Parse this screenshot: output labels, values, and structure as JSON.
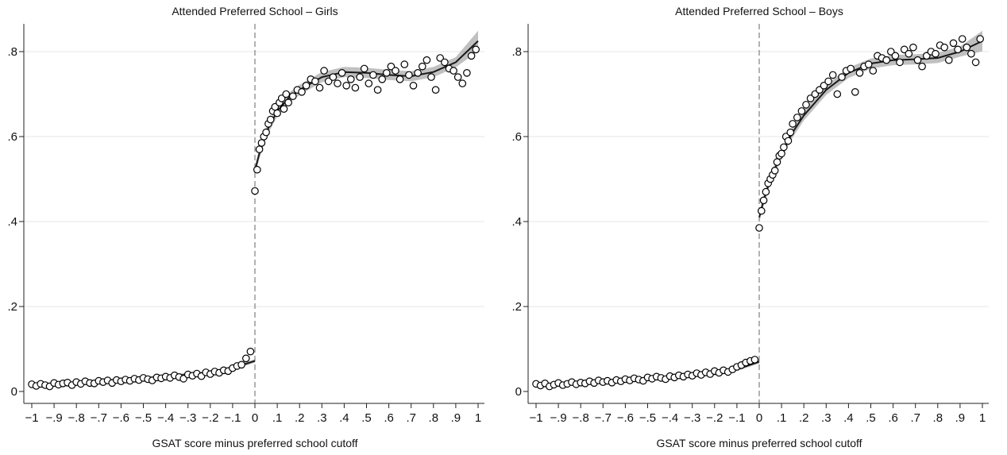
{
  "chart_data": [
    {
      "type": "scatter",
      "title": "Attended Preferred School – Girls",
      "xlabel": "GSAT score minus preferred school cutoff",
      "ylabel": "",
      "xlim": [
        -1,
        1
      ],
      "ylim": [
        0,
        0.85
      ],
      "x_ticks": [
        "−1",
        "−.9",
        "−.8",
        "−.7",
        "−.6",
        "−.5",
        "−.4",
        "−.3",
        "−.2",
        "−.1",
        "0",
        ".1",
        ".2",
        ".3",
        ".4",
        ".5",
        ".6",
        ".7",
        ".8",
        ".9",
        "1"
      ],
      "y_ticks": [
        "0",
        ".2",
        ".4",
        ".6",
        ".8"
      ],
      "grid": "horizontal",
      "cutoff_line": 0,
      "fit": {
        "left": {
          "x": [
            -1,
            -0.8,
            -0.6,
            -0.4,
            -0.2,
            -0.1,
            0
          ],
          "y": [
            0.015,
            0.02,
            0.027,
            0.035,
            0.045,
            0.055,
            0.072
          ]
        },
        "right": {
          "x": [
            0,
            0.02,
            0.05,
            0.1,
            0.15,
            0.2,
            0.3,
            0.4,
            0.5,
            0.6,
            0.7,
            0.8,
            0.9,
            1.0
          ],
          "y": [
            0.52,
            0.56,
            0.61,
            0.66,
            0.69,
            0.71,
            0.74,
            0.752,
            0.75,
            0.745,
            0.742,
            0.752,
            0.775,
            0.825
          ]
        }
      },
      "points": {
        "x": [
          -1.0,
          -0.98,
          -0.96,
          -0.94,
          -0.92,
          -0.9,
          -0.88,
          -0.86,
          -0.84,
          -0.82,
          -0.8,
          -0.78,
          -0.76,
          -0.74,
          -0.72,
          -0.7,
          -0.68,
          -0.66,
          -0.64,
          -0.62,
          -0.6,
          -0.58,
          -0.56,
          -0.54,
          -0.52,
          -0.5,
          -0.48,
          -0.46,
          -0.44,
          -0.42,
          -0.4,
          -0.38,
          -0.36,
          -0.34,
          -0.32,
          -0.3,
          -0.28,
          -0.26,
          -0.24,
          -0.22,
          -0.2,
          -0.18,
          -0.16,
          -0.14,
          -0.12,
          -0.1,
          -0.08,
          -0.06,
          -0.04,
          -0.02,
          0.0,
          0.01,
          0.02,
          0.03,
          0.04,
          0.05,
          0.06,
          0.07,
          0.08,
          0.09,
          0.1,
          0.11,
          0.12,
          0.13,
          0.14,
          0.15,
          0.17,
          0.19,
          0.21,
          0.23,
          0.25,
          0.27,
          0.29,
          0.31,
          0.33,
          0.35,
          0.37,
          0.39,
          0.41,
          0.43,
          0.45,
          0.47,
          0.49,
          0.51,
          0.53,
          0.55,
          0.57,
          0.59,
          0.61,
          0.63,
          0.65,
          0.67,
          0.69,
          0.71,
          0.73,
          0.75,
          0.77,
          0.79,
          0.81,
          0.83,
          0.85,
          0.87,
          0.89,
          0.91,
          0.93,
          0.95,
          0.97,
          0.99
        ],
        "y": [
          0.017,
          0.013,
          0.018,
          0.015,
          0.012,
          0.02,
          0.016,
          0.019,
          0.021,
          0.015,
          0.022,
          0.018,
          0.024,
          0.02,
          0.019,
          0.025,
          0.022,
          0.026,
          0.02,
          0.027,
          0.024,
          0.028,
          0.025,
          0.03,
          0.027,
          0.032,
          0.029,
          0.026,
          0.033,
          0.031,
          0.035,
          0.032,
          0.038,
          0.034,
          0.03,
          0.04,
          0.037,
          0.042,
          0.036,
          0.045,
          0.041,
          0.047,
          0.044,
          0.05,
          0.048,
          0.055,
          0.06,
          0.063,
          0.078,
          0.094,
          0.472,
          0.522,
          0.57,
          0.585,
          0.6,
          0.61,
          0.63,
          0.64,
          0.66,
          0.67,
          0.655,
          0.68,
          0.69,
          0.665,
          0.7,
          0.68,
          0.695,
          0.71,
          0.705,
          0.72,
          0.735,
          0.73,
          0.715,
          0.755,
          0.73,
          0.74,
          0.725,
          0.75,
          0.72,
          0.735,
          0.715,
          0.74,
          0.76,
          0.725,
          0.745,
          0.71,
          0.735,
          0.75,
          0.765,
          0.755,
          0.735,
          0.77,
          0.745,
          0.72,
          0.75,
          0.765,
          0.78,
          0.74,
          0.71,
          0.785,
          0.775,
          0.76,
          0.755,
          0.74,
          0.725,
          0.75,
          0.79,
          0.805
        ]
      }
    },
    {
      "type": "scatter",
      "title": "Attended Preferred School – Boys",
      "xlabel": "GSAT score minus preferred school cutoff",
      "ylabel": "",
      "xlim": [
        -1,
        1
      ],
      "ylim": [
        0,
        0.85
      ],
      "x_ticks": [
        "−1",
        "−.9",
        "−.8",
        "−.7",
        "−.6",
        "−.5",
        "−.4",
        "−.3",
        "−.2",
        "−.1",
        "0",
        ".1",
        ".2",
        ".3",
        ".4",
        ".5",
        ".6",
        ".7",
        ".8",
        ".9",
        "1"
      ],
      "y_ticks": [
        "0",
        ".2",
        ".4",
        ".6",
        ".8"
      ],
      "grid": "horizontal",
      "cutoff_line": 0,
      "fit": {
        "left": {
          "x": [
            -1,
            -0.8,
            -0.6,
            -0.4,
            -0.2,
            -0.1,
            0
          ],
          "y": [
            0.015,
            0.019,
            0.025,
            0.032,
            0.042,
            0.052,
            0.07
          ]
        },
        "right": {
          "x": [
            0,
            0.02,
            0.05,
            0.1,
            0.15,
            0.2,
            0.3,
            0.4,
            0.5,
            0.6,
            0.7,
            0.8,
            0.9,
            1.0
          ],
          "y": [
            0.41,
            0.45,
            0.5,
            0.56,
            0.61,
            0.65,
            0.71,
            0.75,
            0.772,
            0.78,
            0.782,
            0.785,
            0.8,
            0.825
          ]
        }
      },
      "points": {
        "x": [
          -1.0,
          -0.98,
          -0.96,
          -0.94,
          -0.92,
          -0.9,
          -0.88,
          -0.86,
          -0.84,
          -0.82,
          -0.8,
          -0.78,
          -0.76,
          -0.74,
          -0.72,
          -0.7,
          -0.68,
          -0.66,
          -0.64,
          -0.62,
          -0.6,
          -0.58,
          -0.56,
          -0.54,
          -0.52,
          -0.5,
          -0.48,
          -0.46,
          -0.44,
          -0.42,
          -0.4,
          -0.38,
          -0.36,
          -0.34,
          -0.32,
          -0.3,
          -0.28,
          -0.26,
          -0.24,
          -0.22,
          -0.2,
          -0.18,
          -0.16,
          -0.14,
          -0.12,
          -0.1,
          -0.08,
          -0.06,
          -0.04,
          -0.02,
          0.0,
          0.01,
          0.02,
          0.03,
          0.04,
          0.05,
          0.06,
          0.07,
          0.08,
          0.09,
          0.1,
          0.11,
          0.12,
          0.13,
          0.14,
          0.15,
          0.17,
          0.19,
          0.21,
          0.23,
          0.25,
          0.27,
          0.29,
          0.31,
          0.33,
          0.35,
          0.37,
          0.39,
          0.41,
          0.43,
          0.45,
          0.47,
          0.49,
          0.51,
          0.53,
          0.55,
          0.57,
          0.59,
          0.61,
          0.63,
          0.65,
          0.67,
          0.69,
          0.71,
          0.73,
          0.75,
          0.77,
          0.79,
          0.81,
          0.83,
          0.85,
          0.87,
          0.89,
          0.91,
          0.93,
          0.95,
          0.97,
          0.99
        ],
        "y": [
          0.018,
          0.014,
          0.019,
          0.012,
          0.016,
          0.02,
          0.015,
          0.018,
          0.022,
          0.017,
          0.021,
          0.019,
          0.024,
          0.02,
          0.026,
          0.022,
          0.025,
          0.021,
          0.027,
          0.024,
          0.029,
          0.026,
          0.031,
          0.028,
          0.025,
          0.033,
          0.03,
          0.035,
          0.032,
          0.029,
          0.036,
          0.033,
          0.038,
          0.035,
          0.04,
          0.037,
          0.043,
          0.039,
          0.045,
          0.041,
          0.048,
          0.044,
          0.05,
          0.046,
          0.052,
          0.058,
          0.062,
          0.068,
          0.072,
          0.075,
          0.385,
          0.425,
          0.45,
          0.47,
          0.49,
          0.5,
          0.51,
          0.52,
          0.54,
          0.555,
          0.56,
          0.575,
          0.6,
          0.59,
          0.61,
          0.63,
          0.645,
          0.66,
          0.675,
          0.69,
          0.7,
          0.71,
          0.72,
          0.73,
          0.745,
          0.7,
          0.74,
          0.755,
          0.76,
          0.705,
          0.75,
          0.765,
          0.77,
          0.755,
          0.79,
          0.785,
          0.78,
          0.8,
          0.79,
          0.775,
          0.805,
          0.795,
          0.81,
          0.78,
          0.765,
          0.79,
          0.8,
          0.795,
          0.815,
          0.81,
          0.78,
          0.82,
          0.805,
          0.83,
          0.81,
          0.795,
          0.775,
          0.83
        ]
      }
    }
  ]
}
